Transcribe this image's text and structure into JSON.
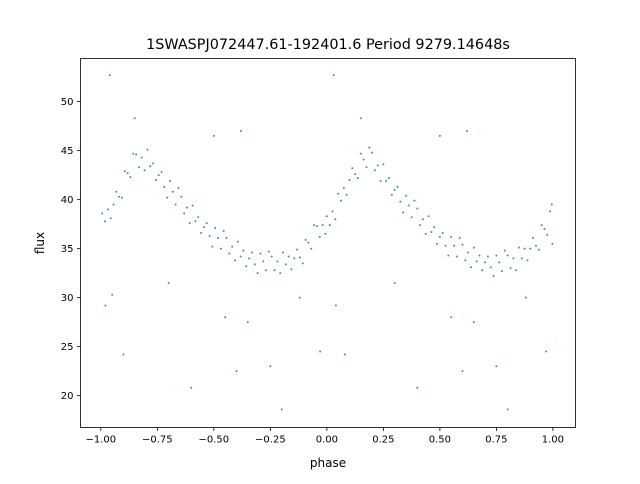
{
  "chart_data": {
    "type": "scatter",
    "title": "1SWASPJ072447.61-192401.6 Period 9279.14648s",
    "xlabel": "phase",
    "ylabel": "flux",
    "xlim": [
      -1.09,
      1.1
    ],
    "ylim": [
      16.75,
      54.4
    ],
    "xticks": [
      -1.0,
      -0.75,
      -0.5,
      -0.25,
      0.0,
      0.25,
      0.5,
      0.75,
      1.0
    ],
    "xtick_labels": [
      "−1.00",
      "−0.75",
      "−0.50",
      "−0.25",
      "0.00",
      "0.25",
      "0.50",
      "0.75",
      "1.00"
    ],
    "yticks": [
      20,
      25,
      30,
      35,
      40,
      45,
      50
    ],
    "ytick_labels": [
      "20",
      "25",
      "30",
      "35",
      "40",
      "45",
      "50"
    ],
    "grid": false,
    "color": "#1f77b4",
    "points": [
      [
        0.0,
        38.3
      ],
      [
        0.0125,
        37.4
      ],
      [
        0.025,
        38.8
      ],
      [
        0.0375,
        38.0
      ],
      [
        0.05,
        40.6
      ],
      [
        0.0625,
        39.9
      ],
      [
        0.075,
        41.2
      ],
      [
        0.0875,
        40.5
      ],
      [
        0.1,
        42.0
      ],
      [
        0.1125,
        43.2
      ],
      [
        0.125,
        42.6
      ],
      [
        0.1375,
        42.2
      ],
      [
        0.15,
        44.7
      ],
      [
        0.1625,
        44.1
      ],
      [
        0.175,
        43.3
      ],
      [
        0.1875,
        45.3
      ],
      [
        0.2,
        44.8
      ],
      [
        0.2125,
        43.0
      ],
      [
        0.225,
        43.5
      ],
      [
        0.2375,
        41.9
      ],
      [
        0.25,
        43.6
      ],
      [
        0.2625,
        41.9
      ],
      [
        0.275,
        42.2
      ],
      [
        0.2875,
        40.5
      ],
      [
        0.3,
        41.0
      ],
      [
        0.3125,
        41.3
      ],
      [
        0.325,
        39.8
      ],
      [
        0.3375,
        38.7
      ],
      [
        0.35,
        40.4
      ],
      [
        0.3625,
        39.4
      ],
      [
        0.375,
        38.2
      ],
      [
        0.3875,
        39.9
      ],
      [
        0.4,
        39.1
      ],
      [
        0.4125,
        37.4
      ],
      [
        0.425,
        38.0
      ],
      [
        0.4375,
        36.5
      ],
      [
        0.45,
        38.3
      ],
      [
        0.4625,
        36.7
      ],
      [
        0.475,
        37.2
      ],
      [
        0.4875,
        35.5
      ],
      [
        0.5,
        36.2
      ],
      [
        0.5125,
        36.6
      ],
      [
        0.525,
        35.3
      ],
      [
        0.5375,
        34.3
      ],
      [
        0.55,
        36.2
      ],
      [
        0.5625,
        35.3
      ],
      [
        0.575,
        34.2
      ],
      [
        0.5875,
        36.1
      ],
      [
        0.6,
        35.4
      ],
      [
        0.6125,
        33.8
      ],
      [
        0.625,
        34.6
      ],
      [
        0.6375,
        33.1
      ],
      [
        0.65,
        35.1
      ],
      [
        0.6625,
        33.7
      ],
      [
        0.675,
        34.3
      ],
      [
        0.6875,
        32.8
      ],
      [
        0.7,
        33.6
      ],
      [
        0.7125,
        34.2
      ],
      [
        0.725,
        33.1
      ],
      [
        0.7375,
        32.2
      ],
      [
        0.75,
        34.3
      ],
      [
        0.7625,
        33.6
      ],
      [
        0.775,
        32.7
      ],
      [
        0.7875,
        34.8
      ],
      [
        0.8,
        34.3
      ],
      [
        0.8125,
        33.0
      ],
      [
        0.825,
        34.0
      ],
      [
        0.8375,
        32.8
      ],
      [
        0.85,
        35.1
      ],
      [
        0.8625,
        34.0
      ],
      [
        0.875,
        35.0
      ],
      [
        0.8875,
        33.8
      ],
      [
        0.9,
        35.0
      ],
      [
        0.9125,
        36.1
      ],
      [
        0.925,
        35.3
      ],
      [
        0.9375,
        34.9
      ],
      [
        0.95,
        37.4
      ],
      [
        0.9625,
        37.0
      ],
      [
        0.975,
        36.4
      ],
      [
        0.9875,
        38.8
      ],
      [
        0.995,
        39.5
      ],
      [
        0.998,
        35.5
      ],
      [
        -0.994,
        38.6
      ],
      [
        -0.9815,
        37.8
      ],
      [
        -0.969,
        39.0
      ],
      [
        -0.9565,
        38.1
      ],
      [
        -0.944,
        39.5
      ],
      [
        -0.9315,
        40.8
      ],
      [
        -0.919,
        40.3
      ],
      [
        -0.9065,
        40.2
      ],
      [
        -0.894,
        42.9
      ],
      [
        -0.8815,
        42.7
      ],
      [
        -0.869,
        42.3
      ],
      [
        -0.8565,
        44.7
      ],
      [
        -0.844,
        44.6
      ],
      [
        -0.8315,
        43.3
      ],
      [
        -0.819,
        44.3
      ],
      [
        -0.8065,
        43.0
      ],
      [
        -0.794,
        45.1
      ],
      [
        -0.7815,
        43.4
      ],
      [
        -0.769,
        43.7
      ],
      [
        -0.7565,
        42.0
      ],
      [
        -0.744,
        42.5
      ],
      [
        -0.7315,
        42.8
      ],
      [
        -0.719,
        41.3
      ],
      [
        -0.7065,
        40.2
      ],
      [
        -0.694,
        41.9
      ],
      [
        -0.6815,
        40.8
      ],
      [
        -0.669,
        39.5
      ],
      [
        -0.6565,
        41.2
      ],
      [
        -0.644,
        40.3
      ],
      [
        -0.6315,
        38.6
      ],
      [
        -0.619,
        39.2
      ],
      [
        -0.6065,
        37.6
      ],
      [
        -0.594,
        39.4
      ],
      [
        -0.5815,
        37.8
      ],
      [
        -0.569,
        38.2
      ],
      [
        -0.5565,
        36.6
      ],
      [
        -0.544,
        37.2
      ],
      [
        -0.5315,
        37.6
      ],
      [
        -0.519,
        36.3
      ],
      [
        -0.5065,
        35.2
      ],
      [
        -0.494,
        37.1
      ],
      [
        -0.4815,
        36.1
      ],
      [
        -0.469,
        35.0
      ],
      [
        -0.4565,
        36.8
      ],
      [
        -0.444,
        36.1
      ],
      [
        -0.4315,
        34.5
      ],
      [
        -0.419,
        35.2
      ],
      [
        -0.4065,
        33.8
      ],
      [
        -0.394,
        35.7
      ],
      [
        -0.3815,
        34.2
      ],
      [
        -0.369,
        34.8
      ],
      [
        -0.3565,
        33.2
      ],
      [
        -0.344,
        34.0
      ],
      [
        -0.3315,
        34.6
      ],
      [
        -0.319,
        33.4
      ],
      [
        -0.3065,
        32.5
      ],
      [
        -0.294,
        34.5
      ],
      [
        -0.2815,
        33.7
      ],
      [
        -0.269,
        32.8
      ],
      [
        -0.2565,
        34.7
      ],
      [
        -0.244,
        34.2
      ],
      [
        -0.2315,
        32.8
      ],
      [
        -0.219,
        33.7
      ],
      [
        -0.2065,
        32.5
      ],
      [
        -0.194,
        34.6
      ],
      [
        -0.1815,
        33.4
      ],
      [
        -0.169,
        34.2
      ],
      [
        -0.1565,
        32.9
      ],
      [
        -0.144,
        34.0
      ],
      [
        -0.1315,
        34.9
      ],
      [
        -0.119,
        34.1
      ],
      [
        -0.1065,
        33.5
      ],
      [
        -0.094,
        35.9
      ],
      [
        -0.0815,
        35.6
      ],
      [
        -0.069,
        35.0
      ],
      [
        -0.0565,
        37.4
      ],
      [
        -0.044,
        37.3
      ],
      [
        -0.0315,
        36.2
      ],
      [
        -0.019,
        37.4
      ],
      [
        -0.0065,
        36.5
      ],
      [
        -0.96,
        52.7
      ],
      [
        0.03,
        52.7
      ],
      [
        -0.98,
        29.2
      ],
      [
        -0.95,
        30.3
      ],
      [
        -0.9,
        24.2
      ],
      [
        0.04,
        29.2
      ],
      [
        0.08,
        24.2
      ],
      [
        -0.4,
        22.5
      ],
      [
        0.6,
        22.5
      ],
      [
        -0.25,
        23.0
      ],
      [
        0.75,
        23.0
      ],
      [
        -0.2,
        18.6
      ],
      [
        0.8,
        18.6
      ],
      [
        -0.6,
        20.8
      ],
      [
        0.4,
        20.8
      ],
      [
        -0.5,
        46.5
      ],
      [
        0.5,
        46.5
      ],
      [
        -0.38,
        47.0
      ],
      [
        0.62,
        47.0
      ],
      [
        -0.12,
        30.0
      ],
      [
        0.88,
        30.0
      ],
      [
        -0.45,
        28.0
      ],
      [
        0.55,
        28.0
      ],
      [
        -0.35,
        27.5
      ],
      [
        0.65,
        27.5
      ],
      [
        -0.03,
        24.5
      ],
      [
        0.97,
        24.5
      ],
      [
        -0.85,
        48.3
      ],
      [
        0.15,
        48.3
      ],
      [
        -0.7,
        31.5
      ],
      [
        0.3,
        31.5
      ]
    ]
  }
}
